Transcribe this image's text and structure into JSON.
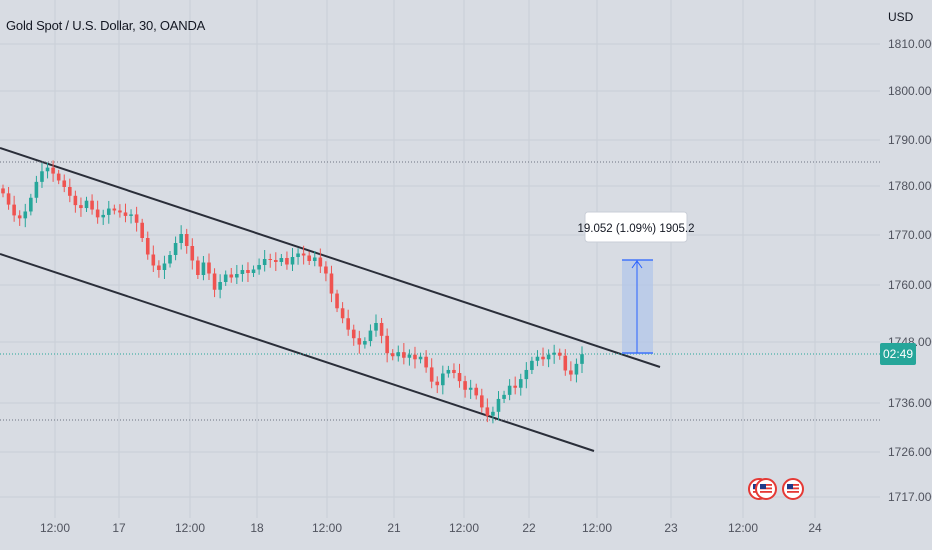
{
  "header": {
    "symbol_title": "Gold Spot / U.S. Dollar, 30, OANDA",
    "currency": "USD"
  },
  "colors": {
    "background": "#d8dce3",
    "up_candle": "#26a69a",
    "down_candle": "#ef5350",
    "trendline": "#2a2e39",
    "price_line": "#26a69a",
    "measure_fill": "#b3c7ea",
    "measure_line": "#2962ff"
  },
  "chart_data": {
    "type": "candlestick",
    "y_axis": {
      "ticks": [
        "1810.000",
        "1800.000",
        "1790.000",
        "1780.000",
        "1770.000",
        "1760.000",
        "1748.000",
        "1736.000",
        "1726.000",
        "1717.000"
      ]
    },
    "x_axis": {
      "ticks": [
        "12:00",
        "17",
        "12:00",
        "18",
        "12:00",
        "21",
        "12:00",
        "22",
        "12:00",
        "23",
        "12:00",
        "24"
      ]
    },
    "current_price_label": "02:49",
    "measurement_label": "19.052 (1.09%) 1905.2",
    "close_series": [
      1778.5,
      1776.2,
      1774.0,
      1773.4,
      1774.8,
      1777.6,
      1780.9,
      1783.2,
      1784.0,
      1782.7,
      1781.2,
      1779.8,
      1778.0,
      1776.1,
      1775.5,
      1777.0,
      1775.2,
      1773.6,
      1774.1,
      1775.4,
      1775.0,
      1774.6,
      1773.9,
      1774.2,
      1772.5,
      1769.4,
      1766.1,
      1763.9,
      1763.0,
      1764.3,
      1766.0,
      1768.4,
      1770.2,
      1767.8,
      1764.9,
      1762.0,
      1764.5,
      1762.3,
      1759.0,
      1760.6,
      1762.1,
      1761.5,
      1762.2,
      1763.0,
      1762.4,
      1763.1,
      1764.0,
      1765.2,
      1765.0,
      1764.6,
      1765.4,
      1764.1,
      1765.6,
      1766.3,
      1765.9,
      1764.8,
      1765.5,
      1763.7,
      1762.3,
      1758.2,
      1755.1,
      1753.0,
      1750.6,
      1748.8,
      1747.5,
      1748.2,
      1750.4,
      1752.0,
      1749.3,
      1745.8,
      1745.2,
      1746.0,
      1744.9,
      1745.5,
      1744.6,
      1745.1,
      1743.0,
      1740.2,
      1739.5,
      1741.8,
      1742.5,
      1741.9,
      1740.3,
      1738.6,
      1739.0,
      1737.5,
      1735.1,
      1733.4,
      1734.2,
      1736.8,
      1737.6,
      1739.4,
      1739.0,
      1740.7,
      1742.5,
      1744.3,
      1745.1,
      1744.6,
      1745.5,
      1745.9,
      1745.3,
      1742.4,
      1741.6,
      1743.7,
      1745.6
    ]
  }
}
